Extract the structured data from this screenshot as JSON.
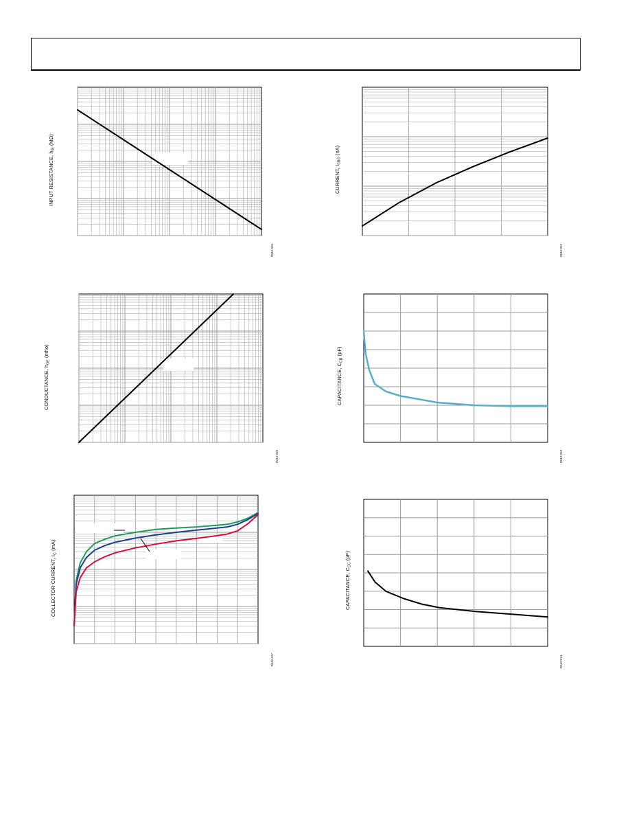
{
  "colors": {
    "curve": "#000000",
    "ccb_curve": "#5aaecb",
    "ic_series": [
      "#1e9a5a",
      "#1b3f8f",
      "#d0103a"
    ],
    "grid": "#9a9a9a",
    "border": "#000000"
  },
  "chart_data": [
    {
      "id": "hie",
      "type": "line",
      "ylabel": {
        "pre": "INPUT RESISTANCE, h",
        "sub": "IE",
        "post": " (MΩ)"
      },
      "figure_id": "0043-009",
      "x_scale": "log",
      "y_scale": "log",
      "grid": true,
      "x": [
        0.01,
        0.1,
        1,
        10,
        100
      ],
      "y": [
        1000,
        100,
        10,
        1,
        0.1
      ]
    },
    {
      "id": "icbo",
      "type": "line",
      "ylabel": {
        "pre": "CURRENT, I",
        "sub": "CBO",
        "post": " (nA)"
      },
      "figure_id": "0043-012",
      "x_scale": "linear",
      "y_scale": "log",
      "grid": true,
      "x": [
        0,
        0.2,
        0.4,
        0.6,
        0.8,
        1.0
      ],
      "y": [
        0.1,
        0.3,
        0.75,
        1.6,
        3.2,
        6.0
      ]
    },
    {
      "id": "hoe",
      "type": "line",
      "ylabel": {
        "pre": "CONDUCTANCE, h",
        "sub": "OE",
        "post": " (mho)"
      },
      "figure_id": "0043-010",
      "x_scale": "log",
      "y_scale": "log",
      "grid": true,
      "x": [
        0.01,
        0.1,
        1,
        10,
        100
      ],
      "y": [
        1e-07,
        1e-06,
        1e-05,
        0.0001,
        0.001
      ]
    },
    {
      "id": "ccb",
      "type": "line",
      "ylabel": {
        "pre": "CAPACITANCE, C",
        "sub": "CB",
        "post": " (pF)"
      },
      "figure_id": "0043-013",
      "x_scale": "linear",
      "y_scale": "linear",
      "grid": true,
      "xlim": [
        0,
        5
      ],
      "ylim": [
        0,
        8
      ],
      "x": [
        0,
        0.05,
        0.15,
        0.3,
        0.6,
        1,
        2,
        3,
        4,
        5
      ],
      "y": [
        6.0,
        4.8,
        3.9,
        3.15,
        2.75,
        2.5,
        2.15,
        2.0,
        1.95,
        1.95
      ]
    },
    {
      "id": "ic",
      "type": "line",
      "ylabel": {
        "pre": "COLLECTOR CURRENT, I",
        "sub": "C",
        "post": " (mA)"
      },
      "figure_id": "0043-017",
      "x_scale": "linear",
      "y_scale": "log",
      "grid": true,
      "xlim": [
        0,
        9
      ],
      "ylim": [
        0.01,
        100
      ],
      "x": [
        0,
        0.1,
        0.3,
        0.6,
        1,
        1.5,
        2,
        3,
        4,
        5,
        6,
        7,
        7.5,
        8,
        8.5,
        9
      ],
      "series": [
        {
          "values": [
            0.03,
            0.5,
            1.5,
            3,
            5,
            6.5,
            8,
            10,
            12,
            13,
            14,
            15.5,
            16.5,
            19,
            24,
            34
          ]
        },
        {
          "values": [
            0.03,
            0.4,
            1.1,
            2.1,
            3.3,
            4.4,
            5.4,
            7,
            8.5,
            10,
            11.5,
            13,
            14,
            16.5,
            22,
            32
          ]
        },
        {
          "values": [
            0.03,
            0.25,
            0.6,
            1.1,
            1.6,
            2.2,
            2.8,
            3.8,
            4.8,
            5.9,
            6.9,
            8.1,
            9,
            11,
            17,
            30
          ]
        }
      ]
    },
    {
      "id": "ccc",
      "type": "line",
      "ylabel": {
        "pre": "CAPACITANCE, C",
        "sub": "CC",
        "post": " (pF)"
      },
      "figure_id": "0043-014",
      "x_scale": "linear",
      "y_scale": "linear",
      "grid": true,
      "xlim": [
        0,
        5
      ],
      "ylim": [
        0,
        8
      ],
      "x": [
        0,
        0.2,
        0.5,
        1,
        1.5,
        2,
        3,
        4,
        5
      ],
      "y": [
        4.1,
        3.5,
        3.0,
        2.6,
        2.3,
        2.1,
        1.9,
        1.75,
        1.6
      ]
    }
  ]
}
